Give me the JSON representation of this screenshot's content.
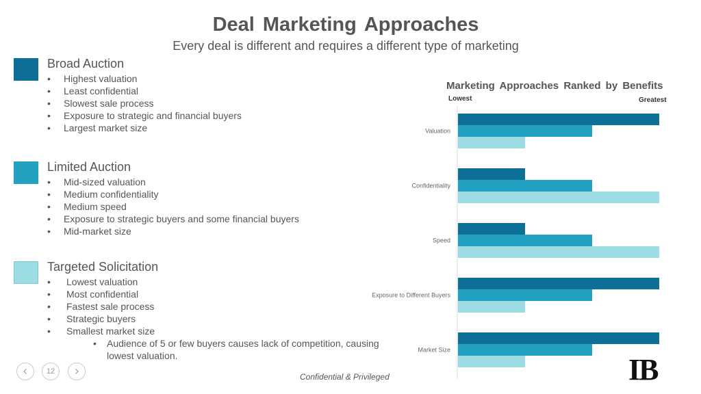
{
  "slide": {
    "title": "Deal Marketing  Approaches",
    "subtitle": "Every deal is different and requires a different type of marketing",
    "page_number": "12",
    "footer": "Confidential & Privileged",
    "logo_text": "IB"
  },
  "sections": [
    {
      "title": "Broad Auction",
      "color": "#0e6f96",
      "bullets": [
        "Highest valuation",
        "Least confidential",
        "Slowest sale process",
        "Exposure to strategic and financial buyers",
        "Largest market size"
      ]
    },
    {
      "title": "Limited Auction",
      "color": "#22a1c0",
      "bullets": [
        "Mid-sized valuation",
        "Medium confidentiality",
        "Medium speed",
        "Exposure to strategic buyers and some financial buyers",
        "Mid-market size"
      ]
    },
    {
      "title": "Targeted Solicitation",
      "color": "#9cdce3",
      "bullets": [
        "Lowest valuation",
        "Most confidential",
        "Fastest sale process",
        "Strategic buyers",
        "Smallest market size"
      ],
      "sub_bullets": [
        "Audience of 5 or few buyers causes lack of competition, causing lowest valuation."
      ]
    }
  ],
  "chart_data": {
    "type": "bar",
    "orientation": "horizontal",
    "title": "Marketing  Approaches  Ranked  by  Benefits",
    "scale_low_label": "Lowest",
    "scale_high_label": "Greatest",
    "categories": [
      "Valuation",
      "Confidentiality",
      "Speed",
      "Exposure to Different Buyers",
      "Market Size"
    ],
    "series": [
      {
        "color": "#0e6f96",
        "values": [
          3,
          1,
          1,
          3,
          3
        ]
      },
      {
        "color": "#22a1c0",
        "values": [
          2,
          2,
          2,
          2,
          2
        ]
      },
      {
        "color": "#9cdce3",
        "values": [
          1,
          3,
          3,
          1,
          1
        ]
      }
    ],
    "xlim": [
      0,
      3
    ],
    "grid": false
  }
}
